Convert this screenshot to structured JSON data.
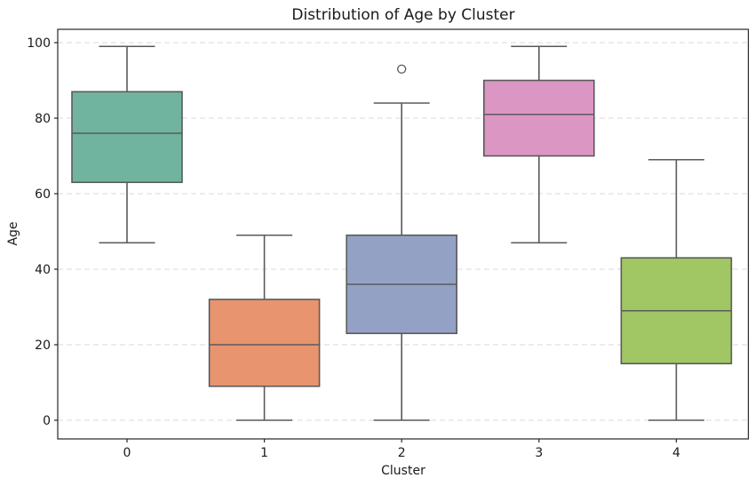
{
  "figure": {
    "background": "#ffffff"
  },
  "chart_data": {
    "type": "box",
    "title": "Distribution of Age by Cluster",
    "xlabel": "Cluster",
    "ylabel": "Age",
    "categories": [
      "0",
      "1",
      "2",
      "3",
      "4"
    ],
    "yticks": [
      0,
      20,
      40,
      60,
      80,
      100
    ],
    "ylim": [
      -4.5,
      103.5
    ],
    "grid": {
      "axis": "y",
      "linestyle": "dashed",
      "color": "#d9d9d9"
    },
    "legend": "none",
    "edge_color": "#5a5a5a",
    "spine_color": "#262626",
    "text_color": "#1a1a1a",
    "outlier_style": "open-circle",
    "boxes": [
      {
        "category": "0",
        "color": "#70B4A0",
        "whisker_low": 47,
        "q1": 63,
        "median": 76,
        "q3": 87,
        "whisker_high": 99,
        "outliers": []
      },
      {
        "category": "1",
        "color": "#E8946F",
        "whisker_low": 0,
        "q1": 9,
        "median": 20,
        "q3": 32,
        "whisker_high": 49,
        "outliers": []
      },
      {
        "category": "2",
        "color": "#93A2C4",
        "whisker_low": 0,
        "q1": 23,
        "median": 36,
        "q3": 49,
        "whisker_high": 84,
        "outliers": [
          93
        ]
      },
      {
        "category": "3",
        "color": "#DB96C3",
        "whisker_low": 47,
        "q1": 70,
        "median": 81,
        "q3": 90,
        "whisker_high": 99,
        "outliers": []
      },
      {
        "category": "4",
        "color": "#A0C764",
        "whisker_low": 0,
        "q1": 15,
        "median": 29,
        "q3": 43,
        "whisker_high": 69,
        "outliers": []
      }
    ]
  }
}
